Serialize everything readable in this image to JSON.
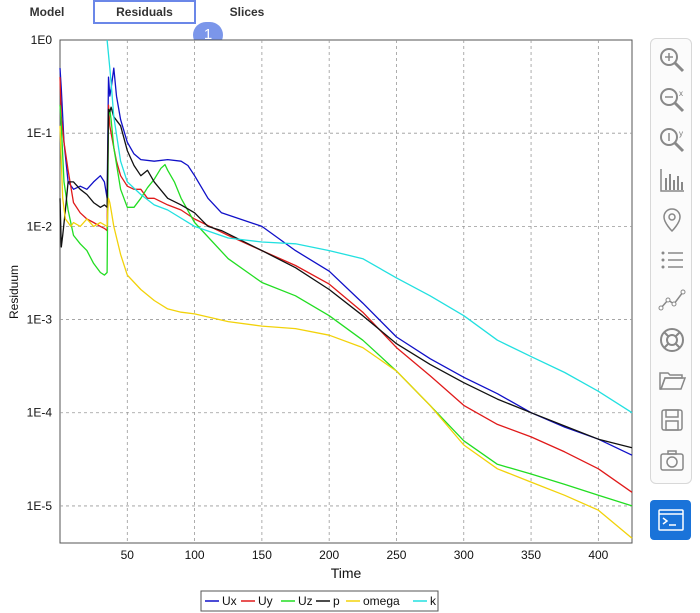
{
  "tabs": [
    {
      "label": "Model",
      "active": false
    },
    {
      "label": "Residuals",
      "active": true
    },
    {
      "label": "Slices",
      "active": false
    }
  ],
  "step_badge": "1",
  "toolbar": {
    "tools": [
      "zoom-icon",
      "zoom-x-icon",
      "zoom-y-icon",
      "bar-chart-icon",
      "map-pin-icon",
      "list-icon",
      "line-chart-icon",
      "lifebuoy-icon",
      "folder-icon",
      "save-icon",
      "camera-icon"
    ],
    "console": "terminal-icon",
    "accent": "#1a73d9"
  },
  "chart_data": {
    "type": "line",
    "xlabel": "Time",
    "ylabel": "Residuum",
    "yscale": "log",
    "xlim": [
      0,
      425
    ],
    "ylim": [
      4e-06,
      1
    ],
    "xticks": [
      50,
      100,
      150,
      200,
      250,
      300,
      350,
      400
    ],
    "xtick_labels": [
      "50",
      "100",
      "150",
      "200",
      "250",
      "300",
      "350",
      "400"
    ],
    "yticks": [
      1,
      0.1,
      0.01,
      0.001,
      0.0001,
      1e-05
    ],
    "ytick_labels": [
      "1E0",
      "1E-1",
      "1E-2",
      "1E-3",
      "1E-4",
      "1E-5"
    ],
    "grid": true,
    "legend_position": "bottom",
    "series": [
      {
        "name": "Ux",
        "color": "#1010c8",
        "x": [
          0,
          1,
          3,
          6,
          10,
          15,
          20,
          25,
          30,
          33,
          35,
          36,
          37,
          38,
          40,
          42,
          45,
          50,
          55,
          60,
          70,
          80,
          90,
          95,
          100,
          110,
          120,
          150,
          175,
          200,
          225,
          250,
          275,
          300,
          325,
          350,
          375,
          400,
          425
        ],
        "y": [
          0.5,
          0.3,
          0.08,
          0.03,
          0.025,
          0.027,
          0.025,
          0.03,
          0.035,
          0.03,
          0.02,
          0.4,
          0.25,
          0.3,
          0.5,
          0.25,
          0.14,
          0.08,
          0.06,
          0.052,
          0.05,
          0.052,
          0.05,
          0.045,
          0.035,
          0.02,
          0.014,
          0.01,
          0.0055,
          0.0033,
          0.0015,
          0.00065,
          0.00038,
          0.00024,
          0.00016,
          0.0001,
          7e-05,
          5.2e-05,
          3.5e-05
        ]
      },
      {
        "name": "Uy",
        "color": "#e01a1a",
        "x": [
          0,
          1,
          3,
          6,
          10,
          15,
          20,
          25,
          30,
          33,
          35,
          36,
          37,
          38,
          40,
          42,
          45,
          50,
          55,
          60,
          65,
          70,
          80,
          90,
          100,
          125,
          150,
          175,
          200,
          225,
          250,
          275,
          300,
          325,
          350,
          375,
          400,
          425
        ],
        "y": [
          0.4,
          0.15,
          0.08,
          0.04,
          0.018,
          0.014,
          0.012,
          0.011,
          0.01,
          0.0095,
          0.009,
          0.2,
          0.12,
          0.1,
          0.07,
          0.05,
          0.035,
          0.027,
          0.025,
          0.025,
          0.02,
          0.02,
          0.017,
          0.015,
          0.012,
          0.008,
          0.0055,
          0.0038,
          0.0024,
          0.0012,
          0.0005,
          0.00025,
          0.00012,
          7.5e-05,
          5.5e-05,
          3.8e-05,
          2.5e-05,
          1.4e-05
        ]
      },
      {
        "name": "Uz",
        "color": "#22dd22",
        "x": [
          0,
          1,
          3,
          6,
          10,
          15,
          20,
          25,
          30,
          33,
          35,
          36,
          37,
          38,
          40,
          45,
          50,
          55,
          60,
          65,
          70,
          75,
          78,
          80,
          85,
          90,
          100,
          125,
          150,
          175,
          200,
          225,
          250,
          275,
          300,
          325,
          350,
          375,
          400,
          425
        ],
        "y": [
          0.2,
          0.12,
          0.03,
          0.015,
          0.008,
          0.0065,
          0.0055,
          0.004,
          0.0032,
          0.003,
          0.0032,
          0.15,
          0.18,
          0.14,
          0.07,
          0.025,
          0.016,
          0.016,
          0.02,
          0.026,
          0.032,
          0.042,
          0.046,
          0.04,
          0.03,
          0.02,
          0.011,
          0.0045,
          0.0025,
          0.0018,
          0.0011,
          0.0006,
          0.00028,
          0.00012,
          5e-05,
          2.8e-05,
          2.2e-05,
          1.7e-05,
          1.3e-05,
          1e-05
        ]
      },
      {
        "name": "p",
        "color": "#111111",
        "x": [
          0,
          1,
          2,
          4,
          6,
          10,
          15,
          20,
          25,
          30,
          33,
          35,
          36,
          37,
          38,
          40,
          45,
          50,
          55,
          60,
          65,
          70,
          80,
          90,
          100,
          110,
          120,
          150,
          175,
          200,
          225,
          250,
          275,
          300,
          325,
          350,
          375,
          400,
          425
        ],
        "y": [
          0.02,
          0.006,
          0.008,
          0.015,
          0.03,
          0.03,
          0.025,
          0.022,
          0.018,
          0.016,
          0.017,
          0.016,
          0.18,
          0.17,
          0.19,
          0.15,
          0.12,
          0.065,
          0.045,
          0.035,
          0.04,
          0.03,
          0.02,
          0.017,
          0.014,
          0.01,
          0.009,
          0.0055,
          0.0036,
          0.0021,
          0.0011,
          0.00055,
          0.00033,
          0.00021,
          0.00014,
          0.0001,
          7.2e-05,
          5.2e-05,
          4.2e-05
        ]
      },
      {
        "name": "omega",
        "color": "#f2d20a",
        "x": [
          0,
          1,
          2,
          4,
          6,
          8,
          10,
          15,
          20,
          25,
          30,
          35,
          36,
          37,
          38,
          40,
          45,
          50,
          60,
          70,
          80,
          90,
          100,
          125,
          150,
          175,
          200,
          225,
          250,
          275,
          300,
          325,
          350,
          375,
          400,
          425
        ],
        "y": [
          0.12,
          0.05,
          0.02,
          0.012,
          0.011,
          0.01,
          0.011,
          0.01,
          0.012,
          0.01,
          0.011,
          0.01,
          0.02,
          0.018,
          0.015,
          0.01,
          0.005,
          0.003,
          0.0021,
          0.0016,
          0.0013,
          0.0012,
          0.00115,
          0.00095,
          0.00085,
          0.0008,
          0.00068,
          0.0005,
          0.00028,
          0.00012,
          4.5e-05,
          2.5e-05,
          1.8e-05,
          1.3e-05,
          9e-06,
          4.5e-06
        ]
      },
      {
        "name": "k",
        "color": "#22e0e0",
        "x": [
          35,
          36,
          37,
          38,
          40,
          45,
          50,
          60,
          70,
          80,
          100,
          125,
          150,
          175,
          200,
          225,
          250,
          275,
          300,
          325,
          350,
          375,
          400,
          425
        ],
        "y": [
          1,
          0.7,
          0.5,
          0.35,
          0.15,
          0.05,
          0.03,
          0.022,
          0.017,
          0.015,
          0.01,
          0.0075,
          0.0068,
          0.0065,
          0.0055,
          0.0045,
          0.0028,
          0.0018,
          0.0011,
          0.0006,
          0.0004,
          0.00027,
          0.00017,
          0.0001
        ]
      }
    ]
  }
}
